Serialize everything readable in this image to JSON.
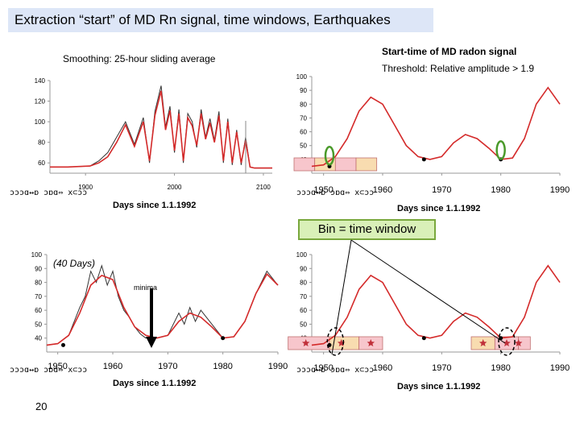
{
  "slide": {
    "title": "Extraction “start” of MD Rn signal, time windows, Earthquakes",
    "page_number": "20",
    "label_smoothing": "Smoothing: 25-hour sliding average",
    "label_start_time": "Start-time of MD radon signal",
    "label_threshold": "Threshold: Relative amplitude > 1.9",
    "label_bin": "Bin = time window",
    "label_window": "(40 Days)",
    "label_minima": "minima",
    "garbled_axis_text": "ɔɔɔɑ↔ɒ ɔɒɑ⇔ x⊂ɔɔ"
  },
  "colors": {
    "signal": "#d42a2a",
    "raw": "#333333",
    "bin_pink": "#f7c6cc",
    "bin_peach": "#f8dcb0",
    "bin_border": "#c07070",
    "circle": "#4a9a2a",
    "star": "#c0303a"
  },
  "chart_data": [
    {
      "id": "top-left",
      "type": "line",
      "xlabel": "Days since 1.1.1992",
      "xlim": [
        1860,
        2110
      ],
      "ylim": [
        50,
        140
      ],
      "xticks": [
        1900,
        2000,
        2100
      ],
      "xtick_labels": [
        "1900",
        "2000",
        "2100"
      ],
      "yticks": [
        60,
        80,
        100,
        120,
        140
      ],
      "ytick_labels": [
        "60",
        "80",
        "100",
        "120",
        "140"
      ],
      "series": [
        {
          "style": "raw",
          "x": [
            1860,
            1880,
            1905,
            1915,
            1925,
            1935,
            1945,
            1955,
            1965,
            1972,
            1978,
            1985,
            1990,
            1995,
            2000,
            2005,
            2010,
            2015,
            2020,
            2025,
            2030,
            2035,
            2040,
            2045,
            2050,
            2055,
            2060,
            2065,
            2070,
            2075,
            2080,
            2085,
            2090,
            2100,
            2110
          ],
          "y": [
            56,
            56,
            57,
            62,
            70,
            85,
            100,
            78,
            104,
            60,
            110,
            135,
            95,
            115,
            70,
            112,
            60,
            108,
            100,
            75,
            112,
            85,
            103,
            82,
            110,
            60,
            103,
            58,
            92,
            58,
            85,
            56,
            55,
            55,
            55
          ]
        },
        {
          "style": "signal",
          "x": [
            1860,
            1880,
            1905,
            1915,
            1925,
            1935,
            1945,
            1955,
            1965,
            1972,
            1978,
            1985,
            1990,
            1995,
            2000,
            2005,
            2010,
            2015,
            2020,
            2025,
            2030,
            2035,
            2040,
            2045,
            2050,
            2055,
            2060,
            2065,
            2070,
            2075,
            2080,
            2085,
            2090,
            2100,
            2110
          ],
          "y": [
            56,
            56,
            57,
            60,
            66,
            80,
            97,
            76,
            100,
            62,
            106,
            130,
            92,
            111,
            72,
            108,
            62,
            104,
            96,
            77,
            108,
            83,
            99,
            80,
            106,
            62,
            100,
            60,
            90,
            60,
            82,
            56,
            55,
            55,
            55
          ]
        }
      ]
    },
    {
      "id": "top-right",
      "type": "line",
      "xlabel": "Days since 1.1.1992",
      "xlim": [
        1948,
        1990
      ],
      "ylim": [
        30,
        100
      ],
      "xticks": [
        1950,
        1960,
        1970,
        1980,
        1990
      ],
      "xtick_labels": [
        "1950",
        "1960",
        "1970",
        "1980",
        "1990"
      ],
      "yticks": [
        40,
        50,
        60,
        70,
        80,
        90,
        100
      ],
      "ytick_labels": [
        "40",
        "50",
        "60",
        "70",
        "80",
        "90",
        "100"
      ],
      "series": [
        {
          "style": "signal",
          "x": [
            1948,
            1950,
            1952,
            1954,
            1956,
            1958,
            1960,
            1962,
            1964,
            1966,
            1968,
            1970,
            1972,
            1974,
            1976,
            1978,
            1980,
            1982,
            1984,
            1986,
            1988,
            1990
          ],
          "y": [
            35,
            36,
            42,
            55,
            75,
            85,
            80,
            65,
            50,
            42,
            40,
            42,
            52,
            58,
            55,
            48,
            40,
            41,
            55,
            80,
            92,
            80
          ]
        }
      ],
      "points": [
        {
          "x": 1951,
          "y": 35
        },
        {
          "x": 1967,
          "y": 40
        },
        {
          "x": 1980,
          "y": 40
        }
      ],
      "highlight": [
        {
          "x": 1951,
          "y": 38
        },
        {
          "x": 1980,
          "y": 42
        }
      ],
      "bins": [
        {
          "x0": 1945,
          "x1": 1948.5,
          "fill": "pink"
        },
        {
          "x0": 1948.5,
          "x1": 1952,
          "fill": "peach"
        },
        {
          "x0": 1952,
          "x1": 1955.5,
          "fill": "pink"
        },
        {
          "x0": 1955.5,
          "x1": 1959,
          "fill": "peach"
        }
      ]
    },
    {
      "id": "bottom-left",
      "type": "line",
      "xlabel": "Days since 1.1.1992",
      "xlim": [
        1948,
        1990
      ],
      "ylim": [
        30,
        100
      ],
      "xticks": [
        1950,
        1960,
        1970,
        1980,
        1990
      ],
      "xtick_labels": [
        "1950",
        "1960",
        "1970",
        "1980",
        "1990"
      ],
      "yticks": [
        40,
        50,
        60,
        70,
        80,
        90,
        100
      ],
      "ytick_labels": [
        "40",
        "50",
        "60",
        "70",
        "80",
        "90",
        "100"
      ],
      "series": [
        {
          "style": "raw",
          "x": [
            1948,
            1950,
            1952,
            1954,
            1955,
            1956,
            1957,
            1958,
            1959,
            1960,
            1961,
            1962,
            1963,
            1964,
            1965,
            1966,
            1968,
            1970,
            1972,
            1973,
            1974,
            1975,
            1976,
            1977,
            1978,
            1979,
            1980,
            1982,
            1984,
            1986,
            1988,
            1990
          ],
          "y": [
            35,
            36,
            42,
            62,
            70,
            88,
            80,
            92,
            78,
            88,
            70,
            60,
            55,
            48,
            43,
            40,
            40,
            42,
            58,
            50,
            62,
            52,
            60,
            55,
            50,
            45,
            40,
            41,
            52,
            72,
            88,
            78
          ]
        },
        {
          "style": "signal",
          "x": [
            1948,
            1950,
            1952,
            1954,
            1956,
            1958,
            1960,
            1962,
            1964,
            1966,
            1968,
            1970,
            1972,
            1974,
            1976,
            1978,
            1980,
            1982,
            1984,
            1986,
            1988,
            1990
          ],
          "y": [
            35,
            36,
            42,
            58,
            78,
            85,
            82,
            62,
            48,
            42,
            40,
            42,
            52,
            58,
            55,
            48,
            40,
            41,
            52,
            72,
            86,
            78
          ]
        }
      ],
      "points": [
        {
          "x": 1951,
          "y": 35
        },
        {
          "x": 1967,
          "y": 40
        },
        {
          "x": 1980,
          "y": 40
        }
      ]
    },
    {
      "id": "bottom-right",
      "type": "line",
      "xlabel": "Days since 1.1.1992",
      "xlim": [
        1948,
        1990
      ],
      "ylim": [
        30,
        100
      ],
      "xticks": [
        1950,
        1960,
        1970,
        1980,
        1990
      ],
      "xtick_labels": [
        "1950",
        "1960",
        "1970",
        "1980",
        "1990"
      ],
      "yticks": [
        40,
        50,
        60,
        70,
        80,
        90,
        100
      ],
      "ytick_labels": [
        "40",
        "50",
        "60",
        "70",
        "80",
        "90",
        "100"
      ],
      "series": [
        {
          "style": "signal",
          "x": [
            1948,
            1950,
            1952,
            1954,
            1956,
            1958,
            1960,
            1962,
            1964,
            1966,
            1968,
            1970,
            1972,
            1974,
            1976,
            1978,
            1980,
            1982,
            1984,
            1986,
            1988,
            1990
          ],
          "y": [
            35,
            36,
            42,
            55,
            75,
            85,
            80,
            65,
            50,
            42,
            40,
            42,
            52,
            58,
            55,
            48,
            40,
            41,
            55,
            80,
            92,
            80
          ]
        }
      ],
      "points": [
        {
          "x": 1951,
          "y": 35
        },
        {
          "x": 1967,
          "y": 40
        },
        {
          "x": 1980,
          "y": 40
        }
      ],
      "bins": [
        {
          "x0": 1944,
          "x1": 1951,
          "fill": "pink"
        },
        {
          "x0": 1951,
          "x1": 1956,
          "fill": "peach"
        },
        {
          "x0": 1956,
          "x1": 1960,
          "fill": "pink"
        },
        {
          "x0": 1975,
          "x1": 1979,
          "fill": "peach"
        },
        {
          "x0": 1979,
          "x1": 1983,
          "fill": "pink"
        },
        {
          "x0": 1983,
          "x1": 1985,
          "fill": "pink"
        }
      ],
      "stars": [
        {
          "x": 1947
        },
        {
          "x": 1953
        },
        {
          "x": 1958
        },
        {
          "x": 1977
        },
        {
          "x": 1981
        },
        {
          "x": 1983
        }
      ],
      "dashed_circles": [
        {
          "x": 1952
        },
        {
          "x": 1981
        }
      ]
    }
  ]
}
